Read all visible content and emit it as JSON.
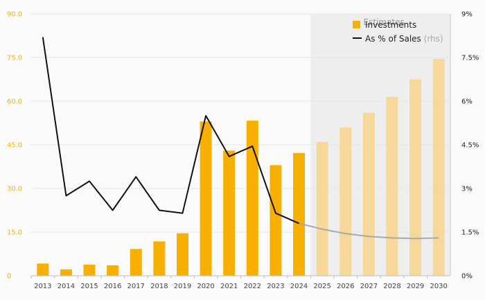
{
  "chart_data": {
    "type": "bar",
    "categories": [
      "2013",
      "2014",
      "2015",
      "2016",
      "2017",
      "2018",
      "2019",
      "2020",
      "2021",
      "2022",
      "2023",
      "2024",
      "2025",
      "2026",
      "2027",
      "2028",
      "2029",
      "2030"
    ],
    "series": [
      {
        "name": "Investments",
        "type": "bar",
        "axis": "left",
        "values": [
          4.2,
          2.2,
          3.8,
          3.6,
          9.2,
          11.8,
          14.6,
          53.0,
          43.0,
          53.3,
          38.0,
          42.2,
          46.0,
          51.0,
          56.0,
          61.5,
          67.5,
          74.5
        ],
        "estimated_from_index": 12
      },
      {
        "name": "As % of Sales",
        "name_suffix": "(rhs)",
        "type": "line",
        "axis": "right",
        "values": [
          8.2,
          2.75,
          3.25,
          2.25,
          3.4,
          2.25,
          2.15,
          5.5,
          4.1,
          4.45,
          2.15,
          1.8,
          1.6,
          1.45,
          1.35,
          1.3,
          1.28,
          1.3
        ],
        "estimated_from_index": 11
      }
    ],
    "ylim_left": [
      0,
      90
    ],
    "yticks_left": [
      "0",
      "15.0",
      "30.0",
      "45.0",
      "60.0",
      "75.0",
      "90.0"
    ],
    "ylim_right": [
      0,
      9
    ],
    "yticks_right": [
      "0%",
      "1.5%",
      "3%",
      "4.5%",
      "6%",
      "7.5%",
      "9%"
    ],
    "estimates_label": "Estimates",
    "estimates_start": "2025",
    "legend_position": "top-right",
    "grid": true,
    "colors": {
      "bar": "#f7b000",
      "bar_estimate": "#f5d89a",
      "line": "#111111",
      "line_estimate": "#a8a8a8",
      "estimate_region": "#eeeeee"
    }
  }
}
